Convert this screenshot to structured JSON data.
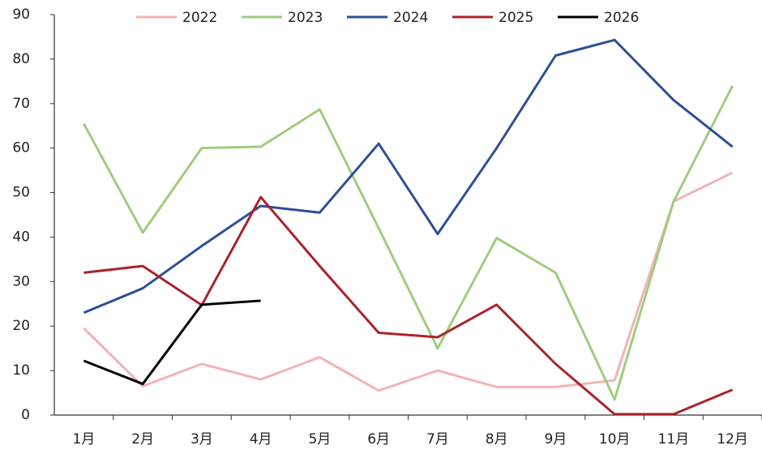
{
  "chart_data": {
    "type": "line",
    "categories": [
      "1月",
      "2月",
      "3月",
      "4月",
      "5月",
      "6月",
      "7月",
      "8月",
      "9月",
      "10月",
      "11月",
      "12月"
    ],
    "series": [
      {
        "name": "2022",
        "color": "#f2b3b6",
        "values": [
          19.5,
          6.5,
          11.5,
          8,
          13,
          5.5,
          10,
          6.3,
          6.3,
          7.8,
          48,
          54.5
        ]
      },
      {
        "name": "2023",
        "color": "#9fcc7f",
        "values": [
          65.5,
          41,
          60,
          60.3,
          68.7,
          42,
          15,
          39.8,
          32,
          3.5,
          48,
          74
        ]
      },
      {
        "name": "2024",
        "color": "#2e4f94",
        "values": [
          23,
          28.5,
          38,
          47,
          45.5,
          61,
          40.7,
          60,
          80.8,
          84.3,
          70.8,
          60.3
        ]
      },
      {
        "name": "2025",
        "color": "#a8242c",
        "values": [
          32,
          33.5,
          24.7,
          49,
          33.5,
          18.5,
          17.5,
          24.8,
          11.5,
          0.2,
          0.2,
          5.7
        ]
      },
      {
        "name": "2026",
        "color": "#000000",
        "values": [
          12.2,
          7,
          24.8,
          25.7,
          null,
          null,
          null,
          null,
          null,
          null,
          null,
          null
        ]
      }
    ],
    "ylim": [
      0,
      90
    ],
    "yticks": [
      0,
      10,
      20,
      30,
      40,
      50,
      60,
      70,
      80,
      90
    ],
    "grid": false,
    "legend": "top"
  }
}
